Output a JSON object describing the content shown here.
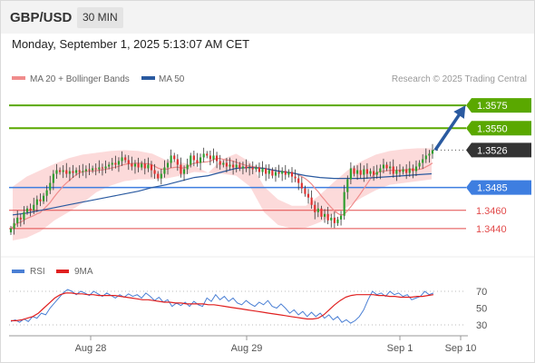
{
  "header": {
    "symbol": "GBP/USD",
    "timeframe": "30 MIN"
  },
  "datetime": "Monday, September 1, 2025 5:13:07 AM CET",
  "legend": {
    "ma20": "MA 20 + Bollinger Bands",
    "ma50": "MA 50"
  },
  "copyright": "Research © 2025 Trading Central",
  "colors": {
    "candle_up": "#2e9e2e",
    "candle_down": "#e03030",
    "ma20": "#f08c8c",
    "ma50": "#2a5aa0",
    "band_fill": "#fbd4d4",
    "resistance": "#5aa800",
    "pivot": "#3e7ee0",
    "support": "#e24a4a",
    "last_price": "#333333",
    "rsi": "#4a7fd4",
    "rsi_ma": "#e02020"
  },
  "chart_data": [
    {
      "type": "candlestick",
      "x_ticks": [
        "Aug 28",
        "Aug 29",
        "Sep 1",
        "Sep 10"
      ],
      "y_range": [
        1.3422,
        1.3593
      ],
      "levels": [
        {
          "label": "1.3575",
          "value": 1.3575,
          "kind": "resistance"
        },
        {
          "label": "1.3550",
          "value": 1.355,
          "kind": "resistance"
        },
        {
          "label": "1.3526",
          "value": 1.3526,
          "kind": "last"
        },
        {
          "label": "1.3485",
          "value": 1.3485,
          "kind": "pivot"
        },
        {
          "label": "1.3460",
          "value": 1.346,
          "kind": "support"
        },
        {
          "label": "1.3440",
          "value": 1.344,
          "kind": "support"
        }
      ],
      "close": [
        1.344,
        1.3446,
        1.3452,
        1.345,
        1.3458,
        1.3462,
        1.346,
        1.3466,
        1.3472,
        1.347,
        1.3476,
        1.3482,
        1.349,
        1.35,
        1.3504,
        1.3502,
        1.3504,
        1.35,
        1.3503,
        1.3501,
        1.3504,
        1.3502,
        1.3503,
        1.3505,
        1.3504,
        1.3506,
        1.3505,
        1.3507,
        1.3506,
        1.3508,
        1.351,
        1.3512,
        1.351,
        1.3514,
        1.3518,
        1.3515,
        1.3511,
        1.3508,
        1.3511,
        1.3507,
        1.3511,
        1.3506,
        1.351,
        1.3504,
        1.35,
        1.3495,
        1.35,
        1.3507,
        1.3512,
        1.352,
        1.3516,
        1.351,
        1.35,
        1.3505,
        1.351,
        1.352,
        1.3515,
        1.3512,
        1.3518,
        1.3522,
        1.352,
        1.3516,
        1.352,
        1.3514,
        1.351,
        1.3512,
        1.3508,
        1.351,
        1.3507,
        1.351,
        1.3506,
        1.3508,
        1.3506,
        1.3507,
        1.3505,
        1.3507,
        1.3502,
        1.3506,
        1.35,
        1.3504,
        1.3498,
        1.3502,
        1.35,
        1.3503,
        1.3499,
        1.3502,
        1.3497,
        1.3495,
        1.349,
        1.3484,
        1.3478,
        1.3474,
        1.3466,
        1.3458,
        1.3462,
        1.3453,
        1.3456,
        1.3449,
        1.3452,
        1.3446,
        1.345,
        1.3454,
        1.348,
        1.3494,
        1.3506,
        1.35,
        1.3504,
        1.3499,
        1.3505,
        1.35,
        1.3503,
        1.3499,
        1.3502,
        1.3506,
        1.351,
        1.3506,
        1.3508,
        1.35,
        1.3504,
        1.3502,
        1.3505,
        1.3501,
        1.3506,
        1.3503,
        1.3508,
        1.3512,
        1.3516,
        1.352,
        1.3522,
        1.3526
      ],
      "bands_upper": [
        1.3486,
        1.3497,
        1.3504,
        1.3511,
        1.3517,
        1.3521,
        1.3523,
        1.3525,
        1.3526,
        1.3525,
        1.3522,
        1.3515,
        1.3513,
        1.3509,
        1.3501,
        1.3516,
        1.3522,
        1.3513,
        1.3486,
        1.3472,
        1.3465,
        1.3465,
        1.3477,
        1.3491,
        1.3504,
        1.3514,
        1.3521,
        1.3525,
        1.3527,
        1.3528,
        1.3528
      ],
      "bands_lower": [
        1.3427,
        1.343,
        1.3437,
        1.3449,
        1.3458,
        1.3468,
        1.348,
        1.3487,
        1.3492,
        1.3494,
        1.3494,
        1.3495,
        1.3498,
        1.3502,
        1.3501,
        1.35,
        1.3498,
        1.3486,
        1.3458,
        1.3444,
        1.344,
        1.3441,
        1.3447,
        1.3456,
        1.3464,
        1.3474,
        1.3482,
        1.3488,
        1.349,
        1.3492,
        1.3494
      ],
      "ma50": [
        1.3455,
        1.3457,
        1.346,
        1.3463,
        1.3466,
        1.3469,
        1.3472,
        1.3475,
        1.3478,
        1.3481,
        1.3485,
        1.3488,
        1.3492,
        1.3496,
        1.3498,
        1.3502,
        1.3506,
        1.3507,
        1.3506,
        1.3503,
        1.3501,
        1.3498,
        1.3496,
        1.3495,
        1.3495,
        1.3495,
        1.3496,
        1.3497,
        1.3498,
        1.3499,
        1.35
      ]
    },
    {
      "type": "line",
      "name": "RSI",
      "ma_name": "9MA",
      "ticks": [
        70,
        50,
        30
      ],
      "levels_dotted": [
        70,
        30
      ],
      "rsi": [
        34,
        36,
        33,
        37,
        34,
        40,
        38,
        44,
        42,
        50,
        56,
        62,
        68,
        72,
        70,
        66,
        70,
        68,
        65,
        70,
        67,
        64,
        68,
        65,
        62,
        66,
        63,
        67,
        64,
        66,
        62,
        68,
        64,
        59,
        63,
        57,
        60,
        52,
        56,
        53,
        57,
        52,
        58,
        54,
        52,
        62,
        58,
        66,
        60,
        64,
        58,
        62,
        56,
        54,
        59,
        55,
        52,
        57,
        54,
        59,
        52,
        50,
        55,
        50,
        44,
        48,
        42,
        46,
        40,
        45,
        40,
        44,
        38,
        42,
        36,
        40,
        33,
        36,
        32,
        35,
        40,
        48,
        60,
        70,
        66,
        68,
        64,
        70,
        66,
        68,
        64,
        66,
        60,
        62,
        64,
        70,
        66,
        68
      ],
      "rsi_ma": [
        35,
        35,
        36,
        38,
        40,
        44,
        50,
        56,
        62,
        66,
        68,
        68,
        67,
        67,
        66,
        66,
        65,
        65,
        65,
        65,
        64,
        63,
        62,
        61,
        60,
        60,
        59,
        58,
        57,
        57,
        56,
        56,
        55,
        55,
        55,
        55,
        54,
        54,
        53,
        52,
        51,
        50,
        49,
        48,
        47,
        46,
        45,
        44,
        43,
        42,
        41,
        40,
        39,
        38,
        37,
        37,
        38,
        42,
        48,
        54,
        59,
        63,
        65,
        66,
        66,
        66,
        66,
        65,
        65,
        64,
        64,
        63,
        63,
        63,
        64,
        64,
        65,
        66
      ]
    }
  ]
}
